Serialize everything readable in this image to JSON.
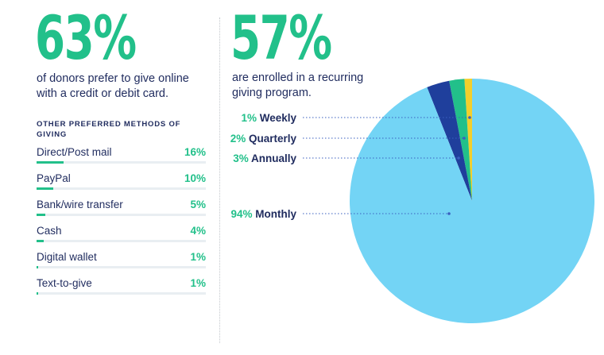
{
  "left_panel": {
    "stat": "63%",
    "description": "of donors prefer to give online with a credit or debit card.",
    "methods_heading": "OTHER PREFERRED METHODS OF GIVING",
    "methods": [
      {
        "label": "Direct/Post mail",
        "value_label": "16%",
        "value": 16
      },
      {
        "label": "PayPal",
        "value_label": "10%",
        "value": 10
      },
      {
        "label": "Bank/wire transfer",
        "value_label": "5%",
        "value": 5
      },
      {
        "label": "Cash",
        "value_label": "4%",
        "value": 4
      },
      {
        "label": "Digital wallet",
        "value_label": "1%",
        "value": 1
      },
      {
        "label": "Text-to-give",
        "value_label": "1%",
        "value": 1
      }
    ]
  },
  "right_panel": {
    "stat": "57%",
    "description": "are enrolled in a recurring giving program."
  },
  "colors": {
    "accent_green": "#22c08a",
    "navy": "#1f2b5e",
    "monthly": "#73d4f5",
    "annually": "#1f3f9c",
    "quarterly": "#22c08a",
    "weekly": "#f3cf2b"
  },
  "chart_data": [
    {
      "type": "bar",
      "categories": [
        "Direct/Post mail",
        "PayPal",
        "Bank/wire transfer",
        "Cash",
        "Digital wallet",
        "Text-to-give"
      ],
      "values": [
        16,
        10,
        5,
        4,
        1,
        1
      ],
      "title": "OTHER PREFERRED METHODS OF GIVING"
    },
    {
      "type": "pie",
      "slices": [
        {
          "label": "Weekly",
          "value": 1,
          "display": "1%",
          "color": "#f3cf2b"
        },
        {
          "label": "Quarterly",
          "value": 2,
          "display": "2%",
          "color": "#22c08a"
        },
        {
          "label": "Annually",
          "value": 3,
          "display": "3%",
          "color": "#1f3f9c"
        },
        {
          "label": "Monthly",
          "value": 94,
          "display": "94%",
          "color": "#73d4f5"
        }
      ]
    }
  ]
}
